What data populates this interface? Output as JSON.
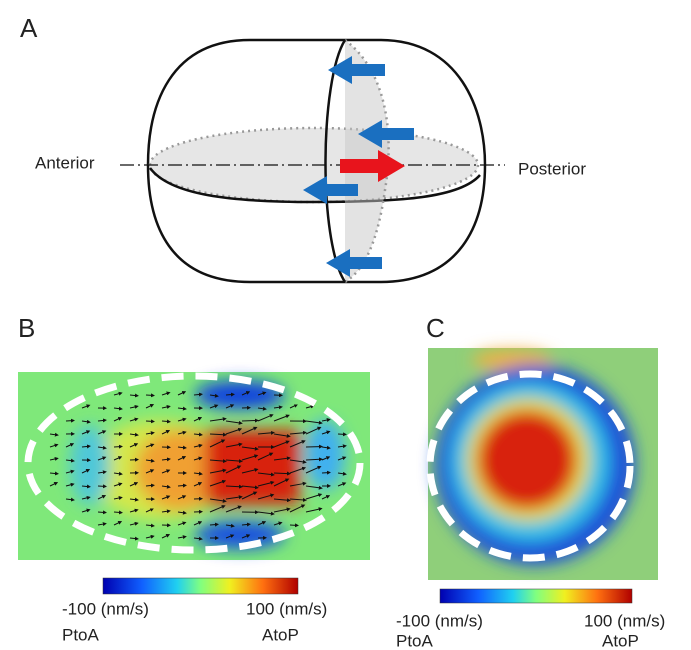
{
  "panel_a": {
    "label": "A",
    "anterior": "Anterior",
    "posterior": "Posterior"
  },
  "panel_b": {
    "label": "B",
    "colorbar": {
      "min_label": "-100 (nm/s)",
      "max_label": "100 (nm/s)",
      "min_direction": "PtoA",
      "max_direction": "AtoP"
    }
  },
  "panel_c": {
    "label": "C",
    "colorbar": {
      "min_label": "-100 (nm/s)",
      "max_label": "100 (nm/s)",
      "min_direction": "PtoA",
      "max_direction": "AtoP"
    }
  }
}
